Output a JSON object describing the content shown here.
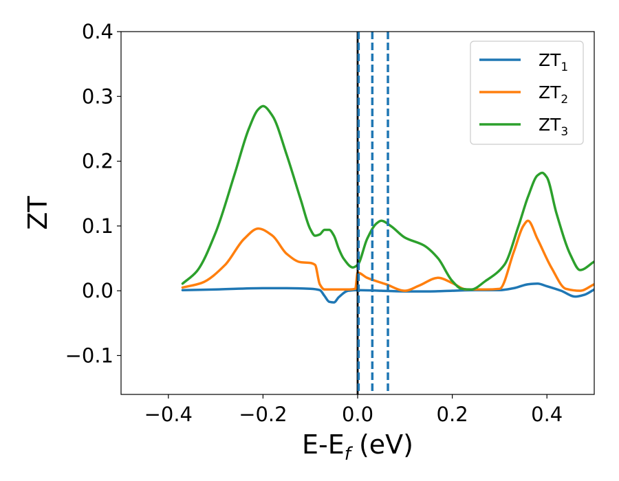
{
  "chart_data": {
    "type": "line",
    "xlabel": "E-E",
    "xlabel_sub": "f",
    "xlabel_unit": " (eV)",
    "ylabel": "ZT",
    "xlim": [
      -0.5,
      0.5
    ],
    "ylim": [
      -0.16,
      0.4
    ],
    "x_ticks": [
      -0.4,
      -0.2,
      0.0,
      0.2,
      0.4
    ],
    "x_tick_labels": [
      "−0.4",
      "−0.2",
      "0.0",
      "0.2",
      "0.4"
    ],
    "y_ticks": [
      -0.1,
      0.0,
      0.1,
      0.2,
      0.3,
      0.4
    ],
    "y_tick_labels": [
      "−0.1",
      "0.0",
      "0.1",
      "0.2",
      "0.3",
      "0.4"
    ],
    "grid": false,
    "legend_position": "top-right",
    "series": [
      {
        "name": "ZT",
        "name_sub": "1",
        "color": "#1f77b4",
        "x": [
          -0.37,
          -0.3,
          -0.2,
          -0.15,
          -0.1,
          -0.08,
          -0.07,
          -0.06,
          -0.05,
          -0.04,
          -0.02,
          0.0,
          0.05,
          0.1,
          0.15,
          0.2,
          0.25,
          0.3,
          0.33,
          0.36,
          0.38,
          0.4,
          0.43,
          0.46,
          0.48,
          0.5
        ],
        "y": [
          0.001,
          0.002,
          0.004,
          0.004,
          0.003,
          0.001,
          -0.008,
          -0.017,
          -0.018,
          -0.01,
          0.0,
          0.001,
          0.0,
          -0.001,
          -0.001,
          0.0,
          0.001,
          0.001,
          0.004,
          0.01,
          0.011,
          0.007,
          0.0,
          -0.009,
          -0.006,
          0.002
        ]
      },
      {
        "name": "ZT",
        "name_sub": "2",
        "color": "#ff7f0e",
        "x": [
          -0.37,
          -0.33,
          -0.28,
          -0.24,
          -0.21,
          -0.18,
          -0.15,
          -0.12,
          -0.1,
          -0.09,
          -0.08,
          -0.07,
          -0.05,
          -0.02,
          -0.005,
          0.0,
          0.02,
          0.06,
          0.1,
          0.13,
          0.17,
          0.2,
          0.23,
          0.27,
          0.3,
          0.33,
          0.35,
          0.36,
          0.38,
          0.41,
          0.44,
          0.47,
          0.5
        ],
        "y": [
          0.005,
          0.012,
          0.04,
          0.08,
          0.096,
          0.085,
          0.057,
          0.044,
          0.043,
          0.04,
          0.01,
          0.002,
          0.002,
          0.002,
          0.003,
          0.028,
          0.02,
          0.01,
          0.0,
          0.008,
          0.02,
          0.012,
          0.002,
          0.002,
          0.003,
          0.06,
          0.1,
          0.108,
          0.08,
          0.035,
          0.003,
          0.0,
          0.01
        ]
      },
      {
        "name": "ZT",
        "name_sub": "3",
        "color": "#2ca02c",
        "x": [
          -0.37,
          -0.34,
          -0.3,
          -0.26,
          -0.23,
          -0.21,
          -0.2,
          -0.18,
          -0.15,
          -0.12,
          -0.1,
          -0.09,
          -0.08,
          -0.07,
          -0.06,
          -0.05,
          -0.04,
          -0.03,
          -0.01,
          0.0,
          0.02,
          0.04,
          0.05,
          0.07,
          0.1,
          0.14,
          0.17,
          0.2,
          0.22,
          0.24,
          0.27,
          0.31,
          0.34,
          0.36,
          0.38,
          0.39,
          0.4,
          0.42,
          0.45,
          0.47,
          0.5
        ],
        "y": [
          0.011,
          0.03,
          0.09,
          0.18,
          0.25,
          0.28,
          0.285,
          0.27,
          0.21,
          0.14,
          0.095,
          0.085,
          0.087,
          0.094,
          0.094,
          0.085,
          0.065,
          0.05,
          0.036,
          0.04,
          0.08,
          0.104,
          0.108,
          0.1,
          0.082,
          0.07,
          0.05,
          0.015,
          0.003,
          0.002,
          0.015,
          0.04,
          0.1,
          0.145,
          0.178,
          0.182,
          0.175,
          0.12,
          0.055,
          0.032,
          0.045
        ]
      }
    ],
    "reference_lines": [
      {
        "x": 0.0,
        "style": "solid",
        "color": "#000000"
      },
      {
        "x": 0.002,
        "style": "dashed",
        "color": "#1f77b4"
      },
      {
        "x": 0.031,
        "style": "dashed",
        "color": "#1f77b4"
      },
      {
        "x": 0.064,
        "style": "dashed",
        "color": "#1f77b4"
      }
    ]
  }
}
